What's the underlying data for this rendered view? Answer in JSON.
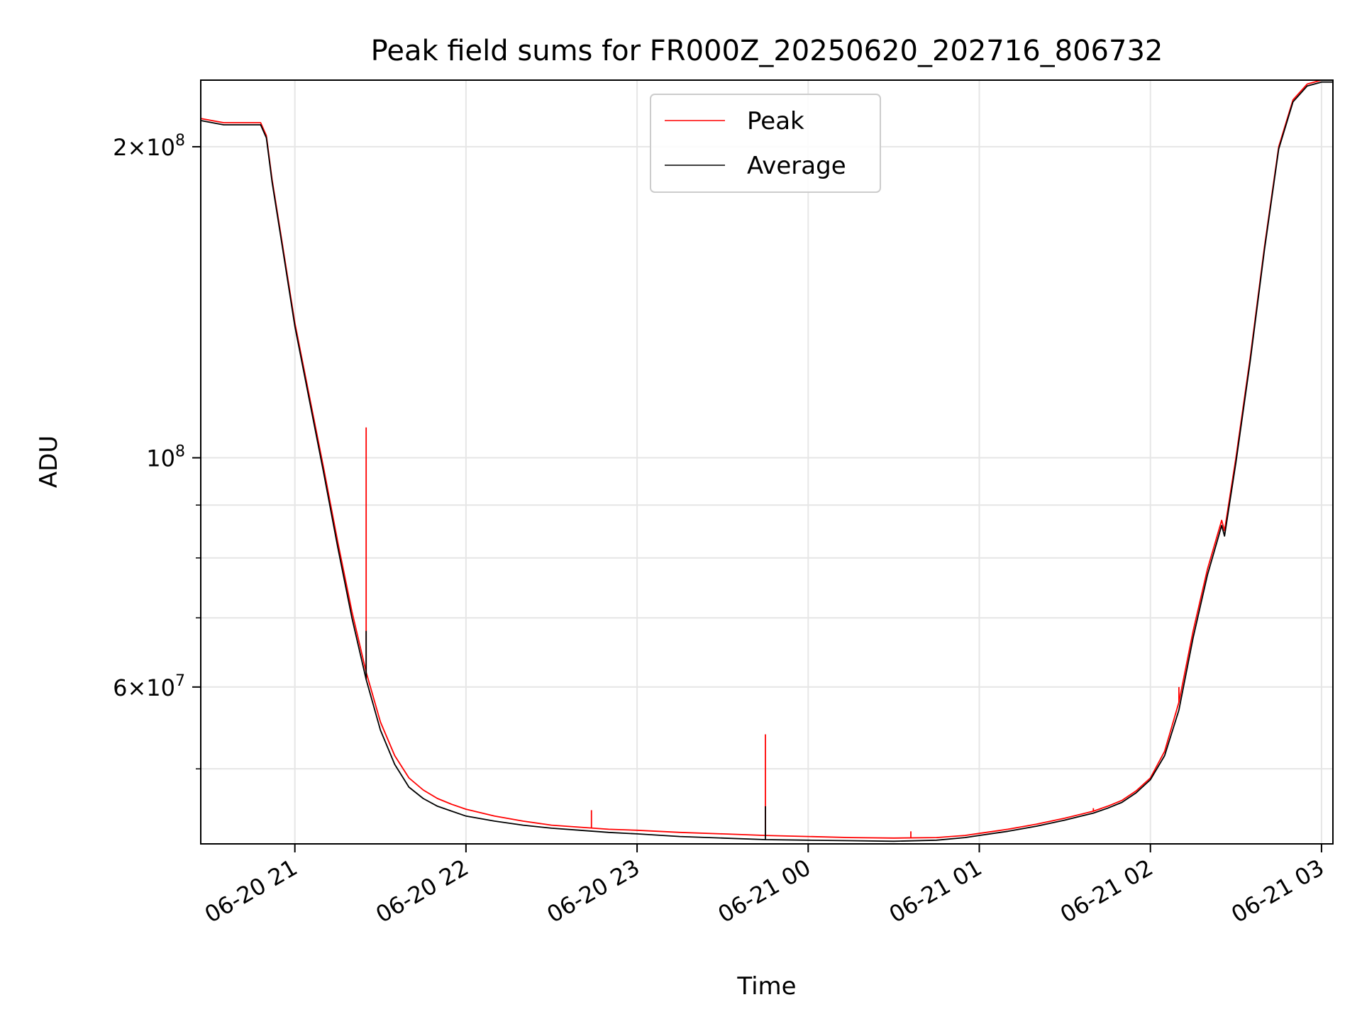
{
  "chart_data": {
    "type": "line",
    "title": "Peak field sums for FR000Z_20250620_202716_806732",
    "xlabel": "Time",
    "ylabel": "ADU",
    "y_scale": "log",
    "ylim": [
      42300000,
      232000000
    ],
    "xlim": [
      "2025-06-20 20:27",
      "2025-06-21 03:04"
    ],
    "x_ticks": [
      {
        "t": "2025-06-20 21:00",
        "label": "06-20 21"
      },
      {
        "t": "2025-06-20 22:00",
        "label": "06-20 22"
      },
      {
        "t": "2025-06-20 23:00",
        "label": "06-20 23"
      },
      {
        "t": "2025-06-21 00:00",
        "label": "06-21 00"
      },
      {
        "t": "2025-06-21 01:00",
        "label": "06-21 01"
      },
      {
        "t": "2025-06-21 02:00",
        "label": "06-21 02"
      },
      {
        "t": "2025-06-21 03:00",
        "label": "06-21 03"
      }
    ],
    "y_major_ticks": [
      {
        "value": 60000000,
        "base": "6",
        "exp": "7"
      },
      {
        "value": 100000000,
        "base": "10",
        "exp": "8"
      },
      {
        "value": 200000000,
        "base": "2",
        "exp": "8"
      }
    ],
    "y_minor_ticks": [
      50000000,
      70000000,
      80000000,
      90000000
    ],
    "grid": true,
    "legend_position": "top-center",
    "series": [
      {
        "name": "Peak",
        "color": "#ff0000",
        "points": [
          [
            "2025-06-20 20:27",
            213000000
          ],
          [
            "2025-06-20 20:35",
            211000000
          ],
          [
            "2025-06-20 20:45",
            211000000
          ],
          [
            "2025-06-20 20:48",
            211000000
          ],
          [
            "2025-06-20 20:50",
            205000000
          ],
          [
            "2025-06-20 20:52",
            186000000
          ],
          [
            "2025-06-20 20:55",
            165000000
          ],
          [
            "2025-06-20 21:00",
            135000000
          ],
          [
            "2025-06-20 21:05",
            115000000
          ],
          [
            "2025-06-20 21:10",
            98000000
          ],
          [
            "2025-06-20 21:15",
            83000000
          ],
          [
            "2025-06-20 21:20",
            71000000
          ],
          [
            "2025-06-20 21:25",
            62000000
          ],
          [
            "2025-06-20 21:30",
            55500000
          ],
          [
            "2025-06-20 21:35",
            51500000
          ],
          [
            "2025-06-20 21:40",
            49000000
          ],
          [
            "2025-06-20 21:45",
            47700000
          ],
          [
            "2025-06-20 21:50",
            46800000
          ],
          [
            "2025-06-20 21:55",
            46200000
          ],
          [
            "2025-06-20 22:00",
            45700000
          ],
          [
            "2025-06-20 22:10",
            45000000
          ],
          [
            "2025-06-20 22:20",
            44500000
          ],
          [
            "2025-06-20 22:30",
            44100000
          ],
          [
            "2025-06-20 22:40",
            43900000
          ],
          [
            "2025-06-20 22:50",
            43700000
          ],
          [
            "2025-06-20 23:00",
            43600000
          ],
          [
            "2025-06-20 23:15",
            43400000
          ],
          [
            "2025-06-20 23:30",
            43250000
          ],
          [
            "2025-06-20 23:45",
            43100000
          ],
          [
            "2025-06-21 00:00",
            43000000
          ],
          [
            "2025-06-21 00:15",
            42900000
          ],
          [
            "2025-06-21 00:30",
            42850000
          ],
          [
            "2025-06-21 00:45",
            42900000
          ],
          [
            "2025-06-21 00:55",
            43100000
          ],
          [
            "2025-06-21 01:00",
            43300000
          ],
          [
            "2025-06-21 01:10",
            43700000
          ],
          [
            "2025-06-21 01:20",
            44200000
          ],
          [
            "2025-06-21 01:30",
            44800000
          ],
          [
            "2025-06-21 01:40",
            45500000
          ],
          [
            "2025-06-21 01:45",
            46000000
          ],
          [
            "2025-06-21 01:50",
            46600000
          ],
          [
            "2025-06-21 01:55",
            47600000
          ],
          [
            "2025-06-21 02:00",
            49000000
          ],
          [
            "2025-06-21 02:05",
            52000000
          ],
          [
            "2025-06-21 02:10",
            58000000
          ],
          [
            "2025-06-21 02:15",
            68000000
          ],
          [
            "2025-06-21 02:20",
            78000000
          ],
          [
            "2025-06-21 02:25",
            87000000
          ],
          [
            "2025-06-21 02:26",
            85000000
          ],
          [
            "2025-06-21 02:30",
            100000000
          ],
          [
            "2025-06-21 02:35",
            125000000
          ],
          [
            "2025-06-21 02:40",
            160000000
          ],
          [
            "2025-06-21 02:45",
            200000000
          ],
          [
            "2025-06-21 02:50",
            222000000
          ],
          [
            "2025-06-21 02:55",
            230000000
          ],
          [
            "2025-06-21 03:00",
            232000000
          ],
          [
            "2025-06-21 03:04",
            232000000
          ]
        ],
        "spikes": [
          [
            "2025-06-20 21:25",
            107000000
          ],
          [
            "2025-06-20 22:44",
            45600000
          ],
          [
            "2025-06-20 23:45",
            54000000
          ],
          [
            "2025-06-21 00:36",
            43500000
          ],
          [
            "2025-06-21 01:40",
            45800000
          ],
          [
            "2025-06-21 02:10",
            60000000
          ]
        ]
      },
      {
        "name": "Average",
        "color": "#000000",
        "points": [
          [
            "2025-06-20 20:27",
            212000000
          ],
          [
            "2025-06-20 20:35",
            210000000
          ],
          [
            "2025-06-20 20:45",
            210000000
          ],
          [
            "2025-06-20 20:48",
            210000000
          ],
          [
            "2025-06-20 20:50",
            204000000
          ],
          [
            "2025-06-20 20:52",
            185000000
          ],
          [
            "2025-06-20 20:55",
            164000000
          ],
          [
            "2025-06-20 21:00",
            134000000
          ],
          [
            "2025-06-20 21:05",
            114000000
          ],
          [
            "2025-06-20 21:10",
            97000000
          ],
          [
            "2025-06-20 21:15",
            82000000
          ],
          [
            "2025-06-20 21:20",
            70000000
          ],
          [
            "2025-06-20 21:25",
            61000000
          ],
          [
            "2025-06-20 21:30",
            54500000
          ],
          [
            "2025-06-20 21:35",
            50500000
          ],
          [
            "2025-06-20 21:40",
            48000000
          ],
          [
            "2025-06-20 21:45",
            46800000
          ],
          [
            "2025-06-20 21:50",
            46000000
          ],
          [
            "2025-06-20 21:55",
            45500000
          ],
          [
            "2025-06-20 22:00",
            45000000
          ],
          [
            "2025-06-20 22:10",
            44500000
          ],
          [
            "2025-06-20 22:20",
            44100000
          ],
          [
            "2025-06-20 22:30",
            43800000
          ],
          [
            "2025-06-20 22:40",
            43600000
          ],
          [
            "2025-06-20 22:50",
            43400000
          ],
          [
            "2025-06-20 23:00",
            43250000
          ],
          [
            "2025-06-20 23:15",
            43000000
          ],
          [
            "2025-06-20 23:30",
            42850000
          ],
          [
            "2025-06-20 23:45",
            42700000
          ],
          [
            "2025-06-21 00:00",
            42650000
          ],
          [
            "2025-06-21 00:15",
            42600000
          ],
          [
            "2025-06-21 00:30",
            42550000
          ],
          [
            "2025-06-21 00:45",
            42650000
          ],
          [
            "2025-06-21 00:55",
            42900000
          ],
          [
            "2025-06-21 01:00",
            43100000
          ],
          [
            "2025-06-21 01:10",
            43500000
          ],
          [
            "2025-06-21 01:20",
            44000000
          ],
          [
            "2025-06-21 01:30",
            44600000
          ],
          [
            "2025-06-21 01:40",
            45300000
          ],
          [
            "2025-06-21 01:45",
            45800000
          ],
          [
            "2025-06-21 01:50",
            46400000
          ],
          [
            "2025-06-21 01:55",
            47400000
          ],
          [
            "2025-06-21 02:00",
            48800000
          ],
          [
            "2025-06-21 02:05",
            51500000
          ],
          [
            "2025-06-21 02:10",
            57000000
          ],
          [
            "2025-06-21 02:15",
            67000000
          ],
          [
            "2025-06-21 02:20",
            77000000
          ],
          [
            "2025-06-21 02:25",
            86000000
          ],
          [
            "2025-06-21 02:26",
            84000000
          ],
          [
            "2025-06-21 02:30",
            99000000
          ],
          [
            "2025-06-21 02:35",
            124000000
          ],
          [
            "2025-06-21 02:40",
            159000000
          ],
          [
            "2025-06-21 02:45",
            199000000
          ],
          [
            "2025-06-21 02:50",
            221000000
          ],
          [
            "2025-06-21 02:55",
            229000000
          ],
          [
            "2025-06-21 03:00",
            231000000
          ],
          [
            "2025-06-21 03:04",
            231000000
          ]
        ],
        "spikes": [
          [
            "2025-06-20 21:25",
            68000000
          ],
          [
            "2025-06-20 23:45",
            46000000
          ]
        ]
      }
    ]
  }
}
